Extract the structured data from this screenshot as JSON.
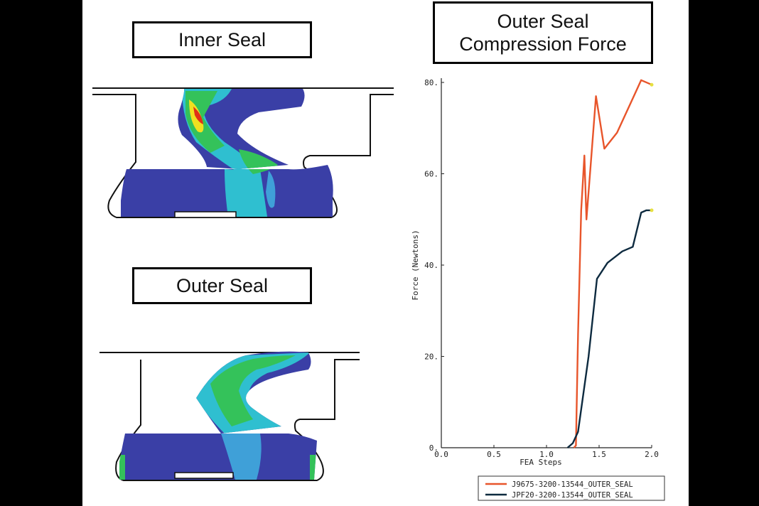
{
  "labels": {
    "inner_seal": "Inner Seal",
    "outer_seal": "Outer Seal",
    "chart_title_line1": "Outer Seal",
    "chart_title_line2": "Compression Force"
  },
  "colors": {
    "series1": "#e8552b",
    "series2": "#0d2a3f",
    "stress_low": "#3a3fa6",
    "stress_mid": "#2fbfd0",
    "stress_hi": "#34c25a",
    "stress_peak": "#f0e020",
    "stress_max": "#e03018"
  },
  "chart_data": {
    "type": "line",
    "title": "Outer Seal Compression Force",
    "xlabel": "FEA Steps",
    "ylabel": "Force (Newtons)",
    "xlim": [
      0,
      2
    ],
    "ylim": [
      0,
      80
    ],
    "xticks": [
      "0.0",
      "0.5",
      "1.0",
      "1.5",
      "2.0"
    ],
    "yticks": [
      "0.",
      "20.",
      "40.",
      "60.",
      "80."
    ],
    "legend_position": "bottom-right",
    "series": [
      {
        "name": "J9675-3200-13544_OUTER_SEAL",
        "color": "#e8552b",
        "points": [
          [
            1.26,
            0
          ],
          [
            1.28,
            0.5
          ],
          [
            1.3,
            25
          ],
          [
            1.33,
            52
          ],
          [
            1.36,
            64
          ],
          [
            1.38,
            50
          ],
          [
            1.42,
            62
          ],
          [
            1.47,
            77
          ],
          [
            1.55,
            65.5
          ],
          [
            1.67,
            69
          ],
          [
            1.82,
            76.5
          ],
          [
            1.9,
            80.5
          ],
          [
            2.0,
            79.5
          ]
        ]
      },
      {
        "name": "JPF20-3200-13544_OUTER_SEAL",
        "color": "#0d2a3f",
        "points": [
          [
            1.2,
            0
          ],
          [
            1.25,
            1
          ],
          [
            1.3,
            3.5
          ],
          [
            1.4,
            20
          ],
          [
            1.48,
            37
          ],
          [
            1.58,
            40.5
          ],
          [
            1.72,
            43
          ],
          [
            1.82,
            44
          ],
          [
            1.9,
            51.5
          ],
          [
            1.95,
            52
          ],
          [
            2.0,
            52
          ]
        ]
      }
    ]
  }
}
